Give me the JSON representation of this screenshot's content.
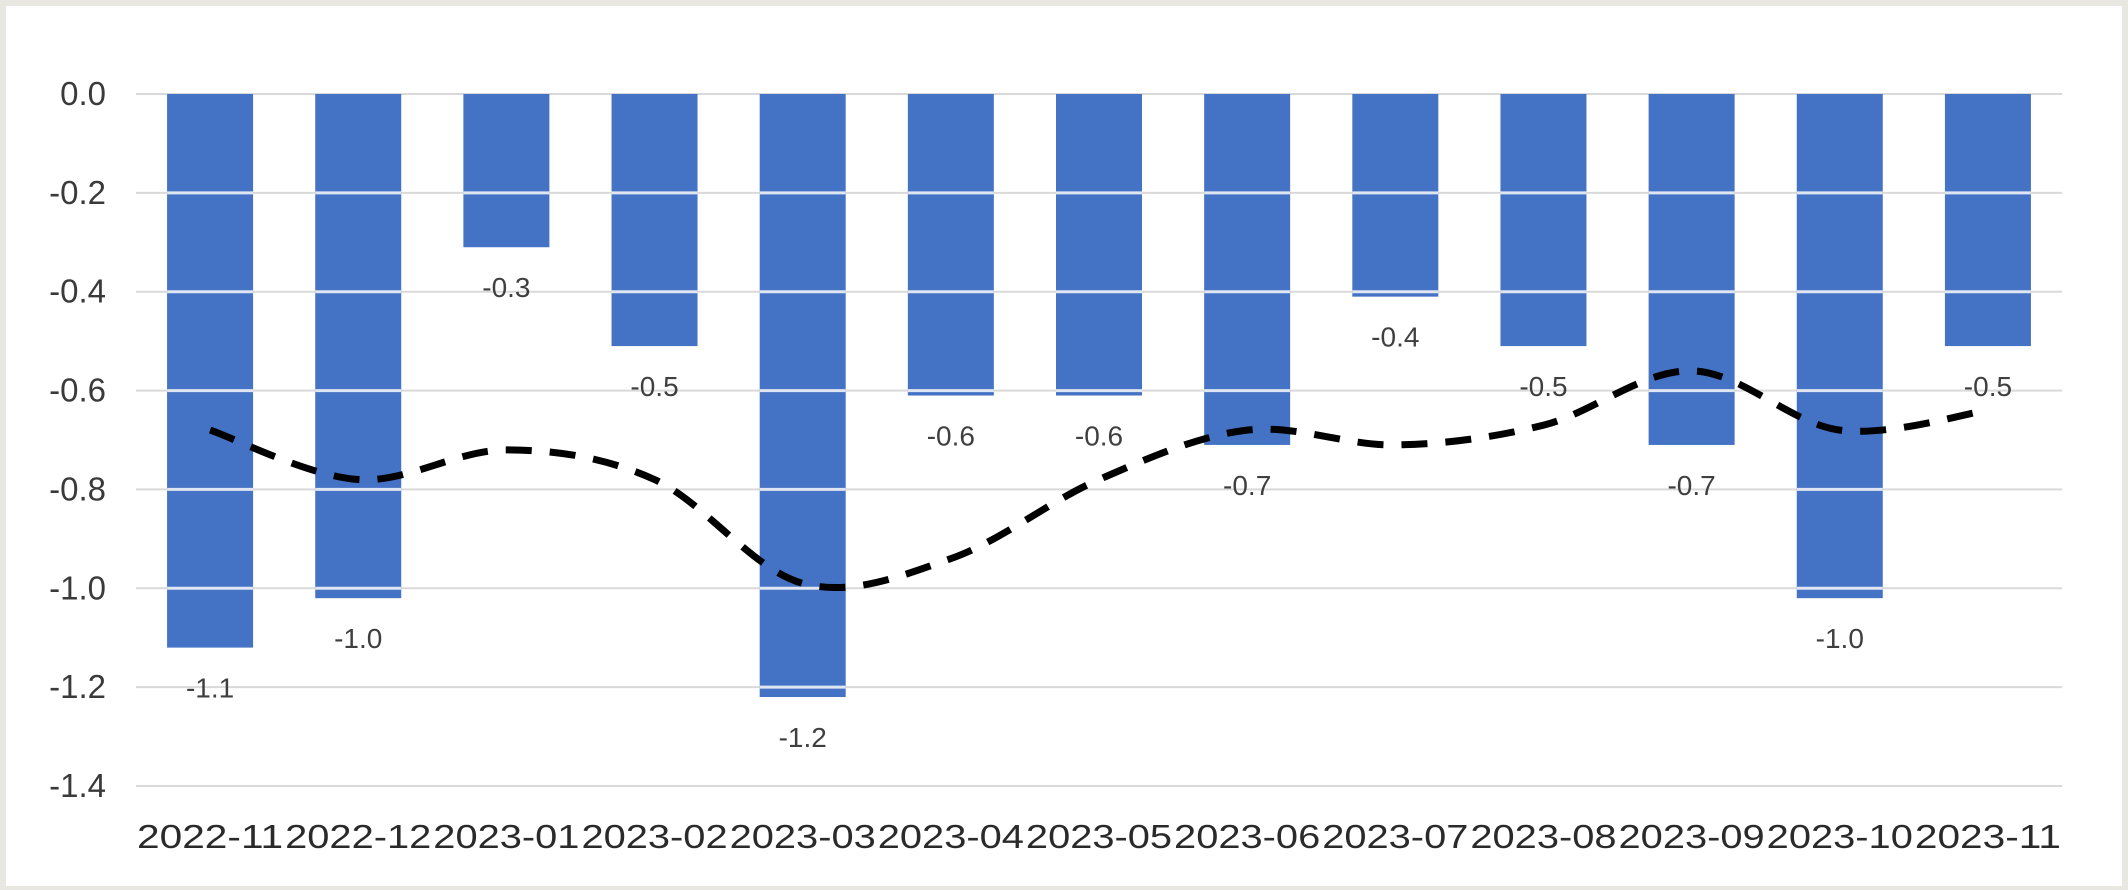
{
  "chart_data": {
    "type": "bar",
    "title": "",
    "xlabel": "",
    "ylabel": "",
    "categories": [
      "2022-11",
      "2022-12",
      "2023-01",
      "2023-02",
      "2023-03",
      "2023-04",
      "2023-05",
      "2023-06",
      "2023-07",
      "2023-08",
      "2023-09",
      "2023-10",
      "2023-11"
    ],
    "values": [
      -1.12,
      -1.02,
      -0.31,
      -0.51,
      -1.22,
      -0.61,
      -0.61,
      -0.71,
      -0.41,
      -0.51,
      -0.71,
      -1.02,
      -0.51
    ],
    "value_labels": [
      "-1.1",
      "-1.0",
      "-0.3",
      "-0.5",
      "-1.2",
      "-0.6",
      "-0.6",
      "-0.7",
      "-0.4",
      "-0.5",
      "-0.7",
      "-1.0",
      "-0.5"
    ],
    "trend_line": [
      -0.68,
      -0.78,
      -0.72,
      -0.78,
      -0.99,
      -0.94,
      -0.78,
      -0.68,
      -0.71,
      -0.67,
      -0.56,
      -0.68,
      -0.64
    ],
    "yticks": [
      "0.0",
      "-0.2",
      "-0.4",
      "-0.6",
      "-0.8",
      "-1.0",
      "-1.2",
      "-1.4"
    ],
    "ylim": [
      -1.4,
      0
    ],
    "grid": true,
    "legend": "none",
    "colors": {
      "bar": "#4472c4",
      "trend": "#000000",
      "grid": "#d9d9d9"
    }
  }
}
